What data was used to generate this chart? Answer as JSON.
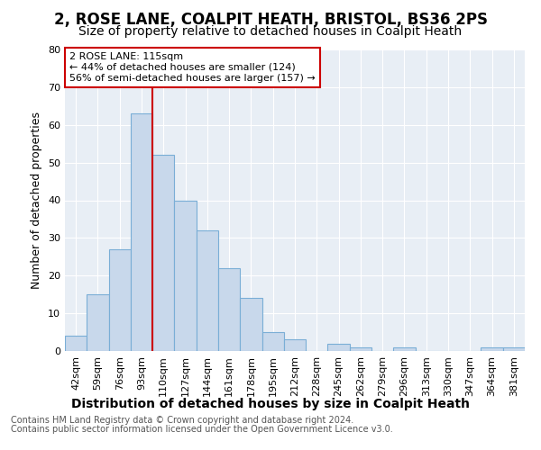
{
  "title_line1": "2, ROSE LANE, COALPIT HEATH, BRISTOL, BS36 2PS",
  "title_line2": "Size of property relative to detached houses in Coalpit Heath",
  "xlabel": "Distribution of detached houses by size in Coalpit Heath",
  "ylabel": "Number of detached properties",
  "categories": [
    "42sqm",
    "59sqm",
    "76sqm",
    "93sqm",
    "110sqm",
    "127sqm",
    "144sqm",
    "161sqm",
    "178sqm",
    "195sqm",
    "212sqm",
    "228sqm",
    "245sqm",
    "262sqm",
    "279sqm",
    "296sqm",
    "313sqm",
    "330sqm",
    "347sqm",
    "364sqm",
    "381sqm"
  ],
  "values": [
    4,
    15,
    27,
    63,
    52,
    40,
    32,
    22,
    14,
    5,
    3,
    0,
    2,
    1,
    0,
    1,
    0,
    0,
    0,
    1,
    1
  ],
  "bar_color": "#c8d8eb",
  "bar_edge_color": "#7aaed6",
  "bar_linewidth": 0.8,
  "ylim": [
    0,
    80
  ],
  "yticks": [
    0,
    10,
    20,
    30,
    40,
    50,
    60,
    70,
    80
  ],
  "property_label": "2 ROSE LANE: 115sqm",
  "annotation_line1": "← 44% of detached houses are smaller (124)",
  "annotation_line2": "56% of semi-detached houses are larger (157) →",
  "vline_x_index": 4,
  "vline_color": "#cc0000",
  "annotation_box_color": "#ffffff",
  "annotation_box_edge": "#cc0000",
  "footnote1": "Contains HM Land Registry data © Crown copyright and database right 2024.",
  "footnote2": "Contains public sector information licensed under the Open Government Licence v3.0.",
  "bg_color": "#ffffff",
  "plot_bg_color": "#e8eef5",
  "grid_color": "#ffffff",
  "title_fontsize": 12,
  "subtitle_fontsize": 10,
  "xlabel_fontsize": 10,
  "ylabel_fontsize": 9,
  "tick_fontsize": 8,
  "annotation_fontsize": 8,
  "footnote_fontsize": 7
}
